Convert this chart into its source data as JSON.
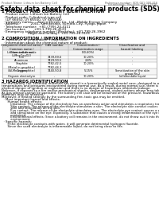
{
  "title": "Safety data sheet for chemical products (SDS)",
  "header_left": "Product Name: Lithium Ion Battery Cell",
  "header_right_line1": "Reference number: SDS-001-000-016",
  "header_right_line2": "Established / Revision: Dec.1.2016",
  "section1_title": "1 PRODUCT AND COMPANY IDENTIFICATION",
  "section1_lines": [
    "  · Product name: Lithium Ion Battery Cell",
    "  · Product code: Cylindrical-type cell",
    "    (UY 66650, UY 66550, UY 66550A)",
    "  · Company name:     Sanyo Electric Co., Ltd., Mobile Energy Company",
    "  · Address:           2001, Kamikosaka, Sumoto-City, Hyogo, Japan",
    "  · Telephone number:  +81-(799)-24-4111",
    "  · Fax number:        +81-1-799-26-4123",
    "  · Emergency telephone number (Weekday): +81-799-26-3962",
    "                          (Night and holiday): +81-799-26-3101"
  ],
  "section2_title": "2 COMPOSITION / INFORMATION ON INGREDIENTS",
  "section2_sub1": "  · Substance or preparation: Preparation",
  "section2_sub2": "  · Information about the chemical nature of product:",
  "table_col_headers": [
    "Component chemical name /\nCommon name /\nChemical name",
    "CAS number",
    "Concentration /\nConcentration range",
    "Classification and\nhazard labeling"
  ],
  "table_rows": [
    [
      "Lithium cobalt oxide\n(LiMnxCoyO2)",
      "-",
      "(30-60%)",
      "-"
    ],
    [
      "Iron",
      "7439-89-6",
      "10-20%",
      "-"
    ],
    [
      "Aluminum",
      "7429-90-5",
      "2-8%",
      "-"
    ],
    [
      "Graphite\n(Metal in graphite:)\n(Al-Mn in graphite:)",
      "7782-42-5\n7782-44-3",
      "10-20%",
      "-"
    ],
    [
      "Copper",
      "7440-50-8",
      "5-15%",
      "Sensitization of the skin\ngroup Rs:2"
    ],
    [
      "Organic electrolyte",
      "-",
      "10-20%",
      "Inflammable liquid"
    ]
  ],
  "section3_title": "3 HAZARDS IDENTIFICATION",
  "section3_para1": [
    "For the battery cell, chemical materials are stored in a hermetically sealed metal case, designed to withstand",
    "temperatures and pressures encountered during normal use. As a result, during normal use, there is no",
    "physical danger of ignition or explosion and there is no danger of hazardous materials leakage.",
    "However, if exposed to a fire and/or mechanical shocks, decomposed, violent actions whose may take use.",
    "As gas release cannot be operated. The battery cell case will be breached of the pressure; hazardous",
    "materials may be released.",
    "Moreover, if heated strongly by the surrounding fire, toxic gas may be emitted."
  ],
  "section3_bullet1": "  · Most important hazard and effects:",
  "section3_human": "      Human health effects:",
  "section3_human_lines": [
    "         Inhalation: The release of the electrolyte has an anesthesia action and stimulates a respiratory tract.",
    "         Skin contact: The release of the electrolyte stimulates a skin. The electrolyte skin contact causes a",
    "         sore and stimulation on the skin.",
    "         Eye contact: The release of the electrolyte stimulates eyes. The electrolyte eye contact causes a sore",
    "         and stimulation on the eye. Especially, a substance that causes a strong inflammation of the eye is",
    "         contained.",
    "         Environmental effects: Since a battery cell remains in the environment, do not throw out it into the",
    "         environment."
  ],
  "section3_bullet2": "  · Specific hazards:",
  "section3_specific": [
    "      If the electrolyte contacts with water, it will generate detrimental hydrogen fluoride.",
    "      Since the used electrolyte is inflammable liquid, do not bring close to fire."
  ],
  "bg_color": "#ffffff",
  "text_color": "#000000",
  "line_color": "#999999",
  "header_text_color": "#666666",
  "table_header_bg": "#e0e0e0",
  "table_alt_bg": "#f5f5f5"
}
